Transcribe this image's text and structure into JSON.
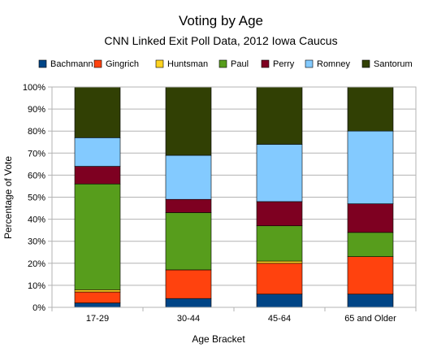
{
  "chart_data": {
    "type": "bar",
    "stacked": true,
    "title": "Voting by Age",
    "subtitle": "CNN Linked Exit Poll Data, 2012 Iowa Caucus",
    "xlabel": "Age Bracket",
    "ylabel": "Percentage of Vote",
    "categories": [
      "17-29",
      "30-44",
      "45-64",
      "65 and Older"
    ],
    "ylim": [
      0,
      100
    ],
    "yticks": [
      "0%",
      "10%",
      "20%",
      "30%",
      "40%",
      "50%",
      "60%",
      "70%",
      "80%",
      "90%",
      "100%"
    ],
    "grid": true,
    "legend_position": "top",
    "series": [
      {
        "name": "Bachmann",
        "color": "#004586",
        "values": [
          2,
          4,
          6,
          6
        ]
      },
      {
        "name": "Gingrich",
        "color": "#ff420e",
        "values": [
          5,
          13,
          14,
          17
        ]
      },
      {
        "name": "Huntsman",
        "color": "#ffd320",
        "values": [
          1,
          0,
          1,
          0
        ]
      },
      {
        "name": "Paul",
        "color": "#579d1c",
        "values": [
          48,
          26,
          16,
          11
        ]
      },
      {
        "name": "Perry",
        "color": "#7e0021",
        "values": [
          8,
          6,
          11,
          13
        ]
      },
      {
        "name": "Romney",
        "color": "#83caff",
        "values": [
          13,
          20,
          26,
          33
        ]
      },
      {
        "name": "Santorum",
        "color": "#314004",
        "values": [
          23,
          31,
          26,
          20
        ]
      }
    ]
  }
}
